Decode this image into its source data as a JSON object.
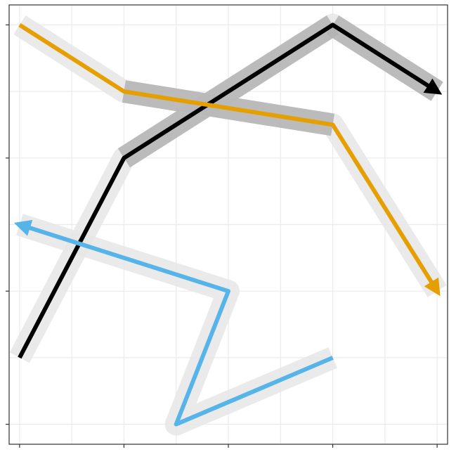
{
  "chart_data": {
    "type": "line",
    "title": "",
    "xlabel": "",
    "ylabel": "",
    "xlim": [
      -0.2,
      8.2
    ],
    "ylim": [
      -0.3,
      6.3
    ],
    "x_ticks": [
      0,
      2,
      4,
      6,
      8
    ],
    "y_ticks": [
      0,
      2,
      4,
      6
    ],
    "x_gridlines": [
      0,
      1,
      2,
      3,
      4,
      5,
      6,
      7,
      8
    ],
    "y_gridlines": [
      0,
      1,
      2,
      3,
      4,
      5,
      6
    ],
    "grid": true,
    "legend": "none",
    "series": [
      {
        "color": "#000000",
        "halo_color": "#b3b3b3",
        "arrow_at_end": true,
        "x": [
          0,
          2,
          6,
          8
        ],
        "y": [
          1,
          4,
          6,
          5
        ],
        "highlighted_segments": [
          1,
          2
        ]
      },
      {
        "color": "#E69F00",
        "halo_color": "#b3b3b3",
        "arrow_at_end": true,
        "x": [
          0,
          2,
          6,
          8
        ],
        "y": [
          6,
          5,
          4.5,
          2
        ],
        "highlighted_segments": [
          1
        ]
      },
      {
        "color": "#56B4E9",
        "halo_color": "#b3b3b3",
        "arrow_at_end": true,
        "x": [
          6,
          3,
          4,
          0
        ],
        "y": [
          1,
          0,
          2,
          3
        ],
        "highlighted_segments": []
      }
    ]
  }
}
